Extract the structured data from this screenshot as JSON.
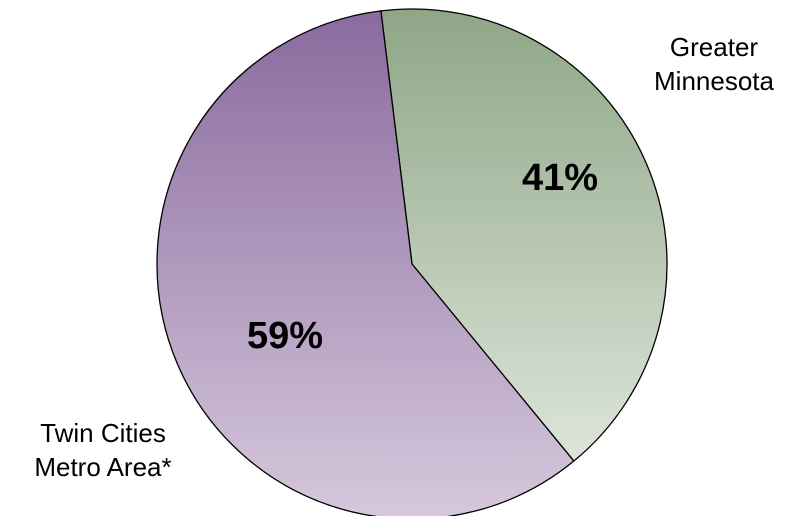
{
  "chart_data": {
    "type": "pie",
    "start_angle_deg": -7,
    "direction": "clockwise",
    "slices": [
      {
        "label_lines": [
          "Greater",
          "Minnesota"
        ],
        "value": 41,
        "data_label": "41%",
        "color_top": "#8ea686",
        "color_bottom": "#dde5da"
      },
      {
        "label_lines": [
          "Twin Cities",
          "Metro Area*"
        ],
        "value": 59,
        "data_label": "59%",
        "color_top": "#8a6a9e",
        "color_bottom": "#d6c8dc"
      }
    ],
    "border_color": "#000000",
    "legend": "none"
  }
}
